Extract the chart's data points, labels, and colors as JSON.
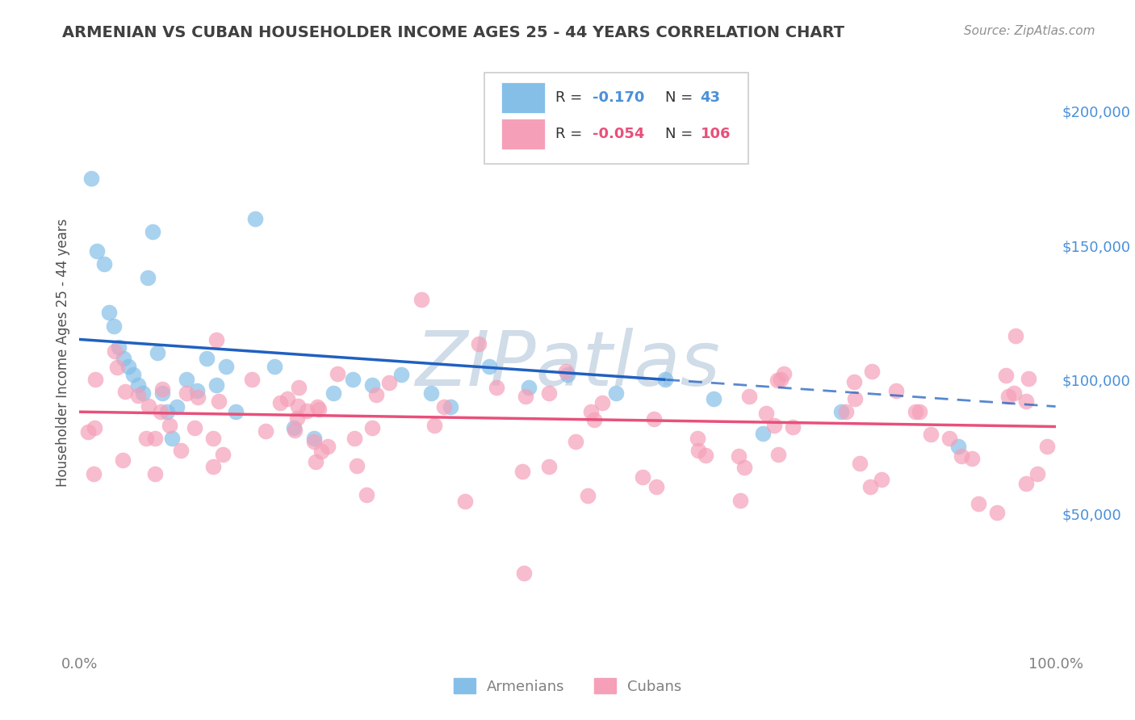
{
  "title": "ARMENIAN VS CUBAN HOUSEHOLDER INCOME AGES 25 - 44 YEARS CORRELATION CHART",
  "source": "Source: ZipAtlas.com",
  "ylabel": "Householder Income Ages 25 - 44 years",
  "xlim": [
    0.0,
    100.0
  ],
  "ylim": [
    0,
    220000
  ],
  "armenian_color": "#85bfe8",
  "cuban_color": "#f5a0b8",
  "armenian_line_color": "#2060c0",
  "cuban_line_color": "#e8507a",
  "background_color": "#ffffff",
  "watermark_text": "ZIPatlas",
  "watermark_color": "#d0dce8",
  "title_color": "#404040",
  "source_color": "#909090",
  "ylabel_color": "#505050",
  "tick_color": "#808080",
  "right_tick_color": "#4a90d9",
  "grid_color": "#dddddd",
  "legend_border_color": "#cccccc",
  "legend_label_color": "#333333"
}
